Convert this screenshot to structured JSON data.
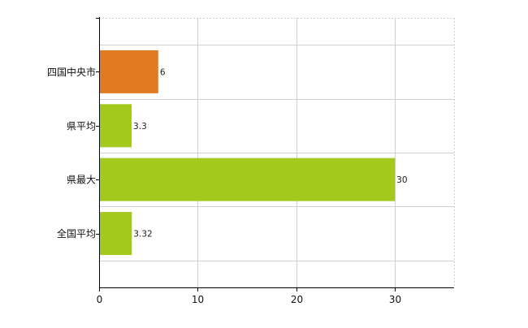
{
  "chart_data": {
    "type": "bar",
    "orientation": "horizontal",
    "categories": [
      "四国中央市",
      "県平均",
      "県最大",
      "全国平均"
    ],
    "values": [
      6,
      3.3,
      30,
      3.32
    ],
    "value_labels": [
      "6",
      "3.3",
      "30",
      "3.32"
    ],
    "bar_colors": [
      "#e07b24",
      "#a3c91e",
      "#a3c91e",
      "#a3c91e"
    ],
    "xlim": [
      0,
      36
    ],
    "x_ticks": [
      0,
      10,
      20,
      30
    ],
    "grid": true,
    "legend": "none",
    "title": "",
    "xlabel": "",
    "ylabel": ""
  }
}
